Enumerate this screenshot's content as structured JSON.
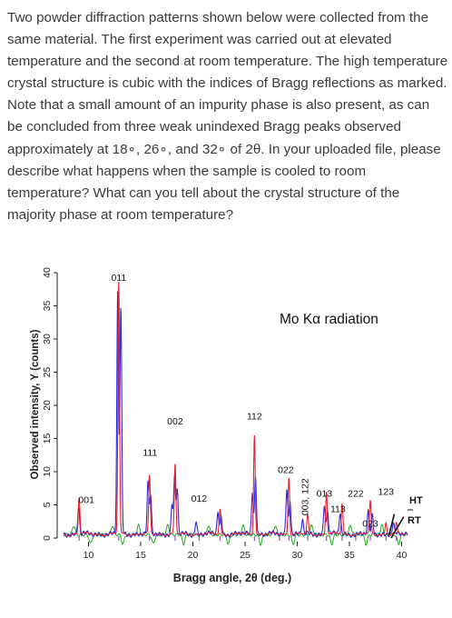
{
  "question": {
    "paragraph_1": "Two powder diffraction patterns shown below were collected from the same material. The first experiment was carried out at elevated temperature and the second at room temperature. The high temperature crystal structure is cubic with the indices of Bragg reflections as marked. Note that a small amount of an impurity phase is also present, as can be concluded from three weak unindexed Bragg peaks observed",
    "paragraph_2": "approximately at 18∘, 26∘, and 32∘ of 2θ. In your uploaded file, please describe what happens when the sample is cooled to room temperature? What can you tell about the crystal structure of the majority phase at room temperature?"
  },
  "chart_data": {
    "type": "line",
    "title": "",
    "annotation": "Mo Kα radiation",
    "xlabel": "Bragg angle, 2θ (deg.)",
    "ylabel": "Observed intensity, Y (counts)",
    "xlim": [
      7,
      41
    ],
    "ylim": [
      0,
      40
    ],
    "x_ticks": [
      10,
      15,
      20,
      25,
      30,
      35,
      40
    ],
    "y_ticks": [
      0,
      5,
      10,
      15,
      20,
      25,
      30,
      35,
      40
    ],
    "series": [
      {
        "name": "HT",
        "color": "#e8202a",
        "peaks": [
          {
            "pos": 9.1,
            "height": 5.5
          },
          {
            "pos": 12.9,
            "height": 38.3
          },
          {
            "pos": 15.85,
            "height": 8.7
          },
          {
            "pos": 18.3,
            "height": 10.5
          },
          {
            "pos": 22.6,
            "height": 3.8
          },
          {
            "pos": 25.9,
            "height": 15.1
          },
          {
            "pos": 29.2,
            "height": 8.7
          },
          {
            "pos": 31.0,
            "height": 2.8
          },
          {
            "pos": 32.8,
            "height": 6.5
          },
          {
            "pos": 34.3,
            "height": 4.6
          },
          {
            "pos": 37.0,
            "height": 4.9
          },
          {
            "pos": 38.5,
            "height": 1.8
          },
          {
            "pos": 39.5,
            "height": 1.5
          }
        ]
      },
      {
        "name": "RT",
        "color": "#2a2ae0",
        "peaks": [
          {
            "pos": 9.05,
            "height": 4.2
          },
          {
            "pos": 12.8,
            "height": 36.5
          },
          {
            "pos": 13.1,
            "height": 34.0
          },
          {
            "pos": 15.7,
            "height": 7.5
          },
          {
            "pos": 15.95,
            "height": 5.8
          },
          {
            "pos": 18.0,
            "height": 4.3
          },
          {
            "pos": 18.25,
            "height": 8.3
          },
          {
            "pos": 18.5,
            "height": 6.8
          },
          {
            "pos": 20.3,
            "height": 2.0
          },
          {
            "pos": 22.4,
            "height": 3.5
          },
          {
            "pos": 22.7,
            "height": 2.8
          },
          {
            "pos": 25.7,
            "height": 6.5
          },
          {
            "pos": 26.0,
            "height": 9.0
          },
          {
            "pos": 29.0,
            "height": 7.0
          },
          {
            "pos": 29.3,
            "height": 5.5
          },
          {
            "pos": 30.5,
            "height": 2.2
          },
          {
            "pos": 32.6,
            "height": 4.5
          },
          {
            "pos": 32.9,
            "height": 3.8
          },
          {
            "pos": 34.1,
            "height": 3.2
          },
          {
            "pos": 36.8,
            "height": 3.2
          },
          {
            "pos": 37.2,
            "height": 2.8
          },
          {
            "pos": 39.2,
            "height": 1.6
          }
        ]
      },
      {
        "name": "difference",
        "color": "#22aa22",
        "baseline": 0.5
      }
    ],
    "reflections": [
      {
        "label": "001",
        "x": 9.8,
        "y": 5.3
      },
      {
        "label": "011",
        "x": 12.9,
        "y": 38.8
      },
      {
        "label": "111",
        "x": 15.9,
        "y": 12.4
      },
      {
        "label": "002",
        "x": 18.3,
        "y": 17.1
      },
      {
        "label": "012",
        "x": 20.6,
        "y": 5.5
      },
      {
        "label": "112",
        "x": 25.9,
        "y": 17.9
      },
      {
        "label": "022",
        "x": 28.9,
        "y": 9.8
      },
      {
        "label": "003, 122",
        "x": 30.8,
        "y": 3.4,
        "vertical": true
      },
      {
        "label": "013",
        "x": 32.6,
        "y": 6.2
      },
      {
        "label": "222",
        "x": 35.6,
        "y": 6.2
      },
      {
        "label": "113",
        "x": 33.9,
        "y": 3.9
      },
      {
        "label": "023",
        "x": 37.0,
        "y": 1.7
      },
      {
        "label": "123",
        "x": 38.5,
        "y": 6.5
      }
    ],
    "legend": [
      {
        "label": "HT"
      },
      {
        "label": "RT"
      }
    ]
  }
}
